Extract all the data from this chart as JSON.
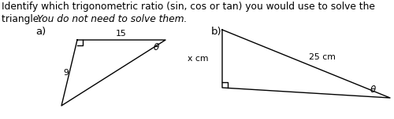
{
  "title_line1": "Identify which trigonometric ratio (sin, cos or tan) you would use to solve the",
  "title_line2_normal": "triangle. ",
  "title_line2_italic": "You do not need to solve them.",
  "label_a": "a)",
  "label_b": "b)",
  "tri_a": {
    "side_top": "15",
    "side_left": "9",
    "angle_label": "θ"
  },
  "tri_b": {
    "side_hyp": "25 cm",
    "side_left": "x cm",
    "angle_label": "θ"
  },
  "background_color": "#ffffff",
  "text_color": "#000000",
  "line_color": "#000000",
  "fontsize_title": 8.8,
  "fontsize_label": 9.5,
  "fontsize_side": 7.8,
  "fontsize_theta": 8.5
}
